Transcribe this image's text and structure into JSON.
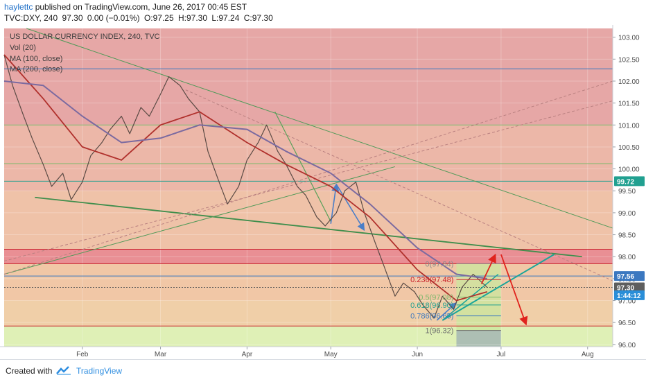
{
  "header": {
    "user": "haylettc",
    "published_text": "published on TradingView.com, June 26, 2017 00:45 EST",
    "ticker_line": "TVC:DXY, 240",
    "last": "97.30",
    "change": "0.00 (−0.01%)",
    "open": "O:97.25",
    "high": "H:97.30",
    "low": "L:97.24",
    "close": "C:97.30"
  },
  "footer": {
    "created_with": "Created with",
    "brand": "TradingView"
  },
  "colors": {
    "price_line": "#5a4a44",
    "ma100": "#b0302c",
    "ma200": "#7b6aa0",
    "trend_green": "#3f8e4c",
    "fib_arrow": "#4a7ec8",
    "projection_arrow": "#e0231d",
    "teal_line": "#1aa59a"
  },
  "chart_data": {
    "type": "line",
    "title": "US DOLLAR CURRENCY INDEX, 240, TVC",
    "legend": [
      "Vol (20)",
      "MA (100, close)",
      "MA (200, close)"
    ],
    "xlabel": "",
    "ylabel": "",
    "x_ticks": [
      "Feb",
      "Mar",
      "Apr",
      "May",
      "Jun",
      "Jul",
      "Aug"
    ],
    "x_tick_dates": [
      "2017-02-01",
      "2017-03-01",
      "2017-04-01",
      "2017-05-01",
      "2017-06-01",
      "2017-07-01",
      "2017-08-01"
    ],
    "xlim": [
      "2017-01-04",
      "2017-08-10"
    ],
    "ylim": [
      95.95,
      103.2
    ],
    "y_ticks": [
      96.0,
      96.5,
      97.0,
      97.5,
      98.0,
      98.5,
      99.0,
      99.5,
      100.0,
      100.5,
      101.0,
      101.5,
      102.0,
      102.5,
      103.0
    ],
    "price_labels": [
      {
        "text": "99.72",
        "value": 99.72,
        "color": "#21a090"
      },
      {
        "text": "97.56",
        "value": 97.56,
        "color": "#3b78c0"
      },
      {
        "text": "97.30",
        "value": 97.3,
        "color": "#5e5e5e"
      },
      {
        "text": "1:44:12",
        "value": 97.12,
        "color": "#2a8ed8"
      }
    ],
    "series": [
      {
        "name": "TVC:DXY",
        "x": [
          "2017-01-04",
          "2017-01-07",
          "2017-01-11",
          "2017-01-14",
          "2017-01-18",
          "2017-01-21",
          "2017-01-25",
          "2017-01-28",
          "2017-02-01",
          "2017-02-04",
          "2017-02-08",
          "2017-02-11",
          "2017-02-15",
          "2017-02-18",
          "2017-02-22",
          "2017-02-25",
          "2017-03-01",
          "2017-03-04",
          "2017-03-08",
          "2017-03-11",
          "2017-03-15",
          "2017-03-18",
          "2017-03-22",
          "2017-03-25",
          "2017-03-29",
          "2017-04-01",
          "2017-04-05",
          "2017-04-08",
          "2017-04-12",
          "2017-04-15",
          "2017-04-19",
          "2017-04-22",
          "2017-04-26",
          "2017-04-29",
          "2017-05-03",
          "2017-05-06",
          "2017-05-10",
          "2017-05-13",
          "2017-05-17",
          "2017-05-20",
          "2017-05-24",
          "2017-05-27",
          "2017-05-31",
          "2017-06-03",
          "2017-06-07",
          "2017-06-10",
          "2017-06-14",
          "2017-06-17",
          "2017-06-21",
          "2017-06-26"
        ],
        "values": [
          102.6,
          101.9,
          101.2,
          100.7,
          100.1,
          99.6,
          99.9,
          99.3,
          99.7,
          100.3,
          100.6,
          100.9,
          101.2,
          100.8,
          101.4,
          101.2,
          101.7,
          102.1,
          101.9,
          101.6,
          101.3,
          100.4,
          99.7,
          99.2,
          99.6,
          100.2,
          100.6,
          101.0,
          100.4,
          100.1,
          99.6,
          99.4,
          98.9,
          98.7,
          99.0,
          99.5,
          99.7,
          99.0,
          98.3,
          97.8,
          97.1,
          97.4,
          97.2,
          96.9,
          96.6,
          97.1,
          96.8,
          97.3,
          97.6,
          97.3
        ]
      },
      {
        "name": "MA (100, close)",
        "x": [
          "2017-01-04",
          "2017-01-18",
          "2017-02-01",
          "2017-02-15",
          "2017-03-01",
          "2017-03-15",
          "2017-04-01",
          "2017-04-15",
          "2017-05-01",
          "2017-05-15",
          "2017-06-01",
          "2017-06-15",
          "2017-06-26"
        ],
        "values": [
          102.6,
          101.6,
          100.5,
          100.2,
          101.0,
          101.3,
          100.6,
          100.1,
          99.6,
          98.9,
          97.7,
          97.0,
          97.2
        ]
      },
      {
        "name": "MA (200, close)",
        "x": [
          "2017-01-04",
          "2017-01-18",
          "2017-02-01",
          "2017-02-15",
          "2017-03-01",
          "2017-03-15",
          "2017-04-01",
          "2017-04-15",
          "2017-05-01",
          "2017-05-15",
          "2017-06-01",
          "2017-06-15",
          "2017-06-26"
        ],
        "values": [
          102.0,
          101.9,
          101.2,
          100.6,
          100.7,
          101.0,
          100.9,
          100.4,
          99.9,
          99.2,
          98.2,
          97.6,
          97.5
        ]
      }
    ],
    "fibonacci": [
      {
        "label": "0(97.84)",
        "value": 97.84
      },
      {
        "label": "0.236(97.48)",
        "value": 97.48
      },
      {
        "label": "0.5(97.08)",
        "value": 97.08
      },
      {
        "label": "0.618(96.90)",
        "value": 96.9
      },
      {
        "label": "0.786(96.65)",
        "value": 96.65
      },
      {
        "label": "1(96.32)",
        "value": 96.32
      }
    ],
    "horizontal_levels": [
      102.28,
      101.0,
      100.12,
      99.72,
      98.17,
      97.84,
      97.56,
      97.3,
      96.42
    ]
  }
}
